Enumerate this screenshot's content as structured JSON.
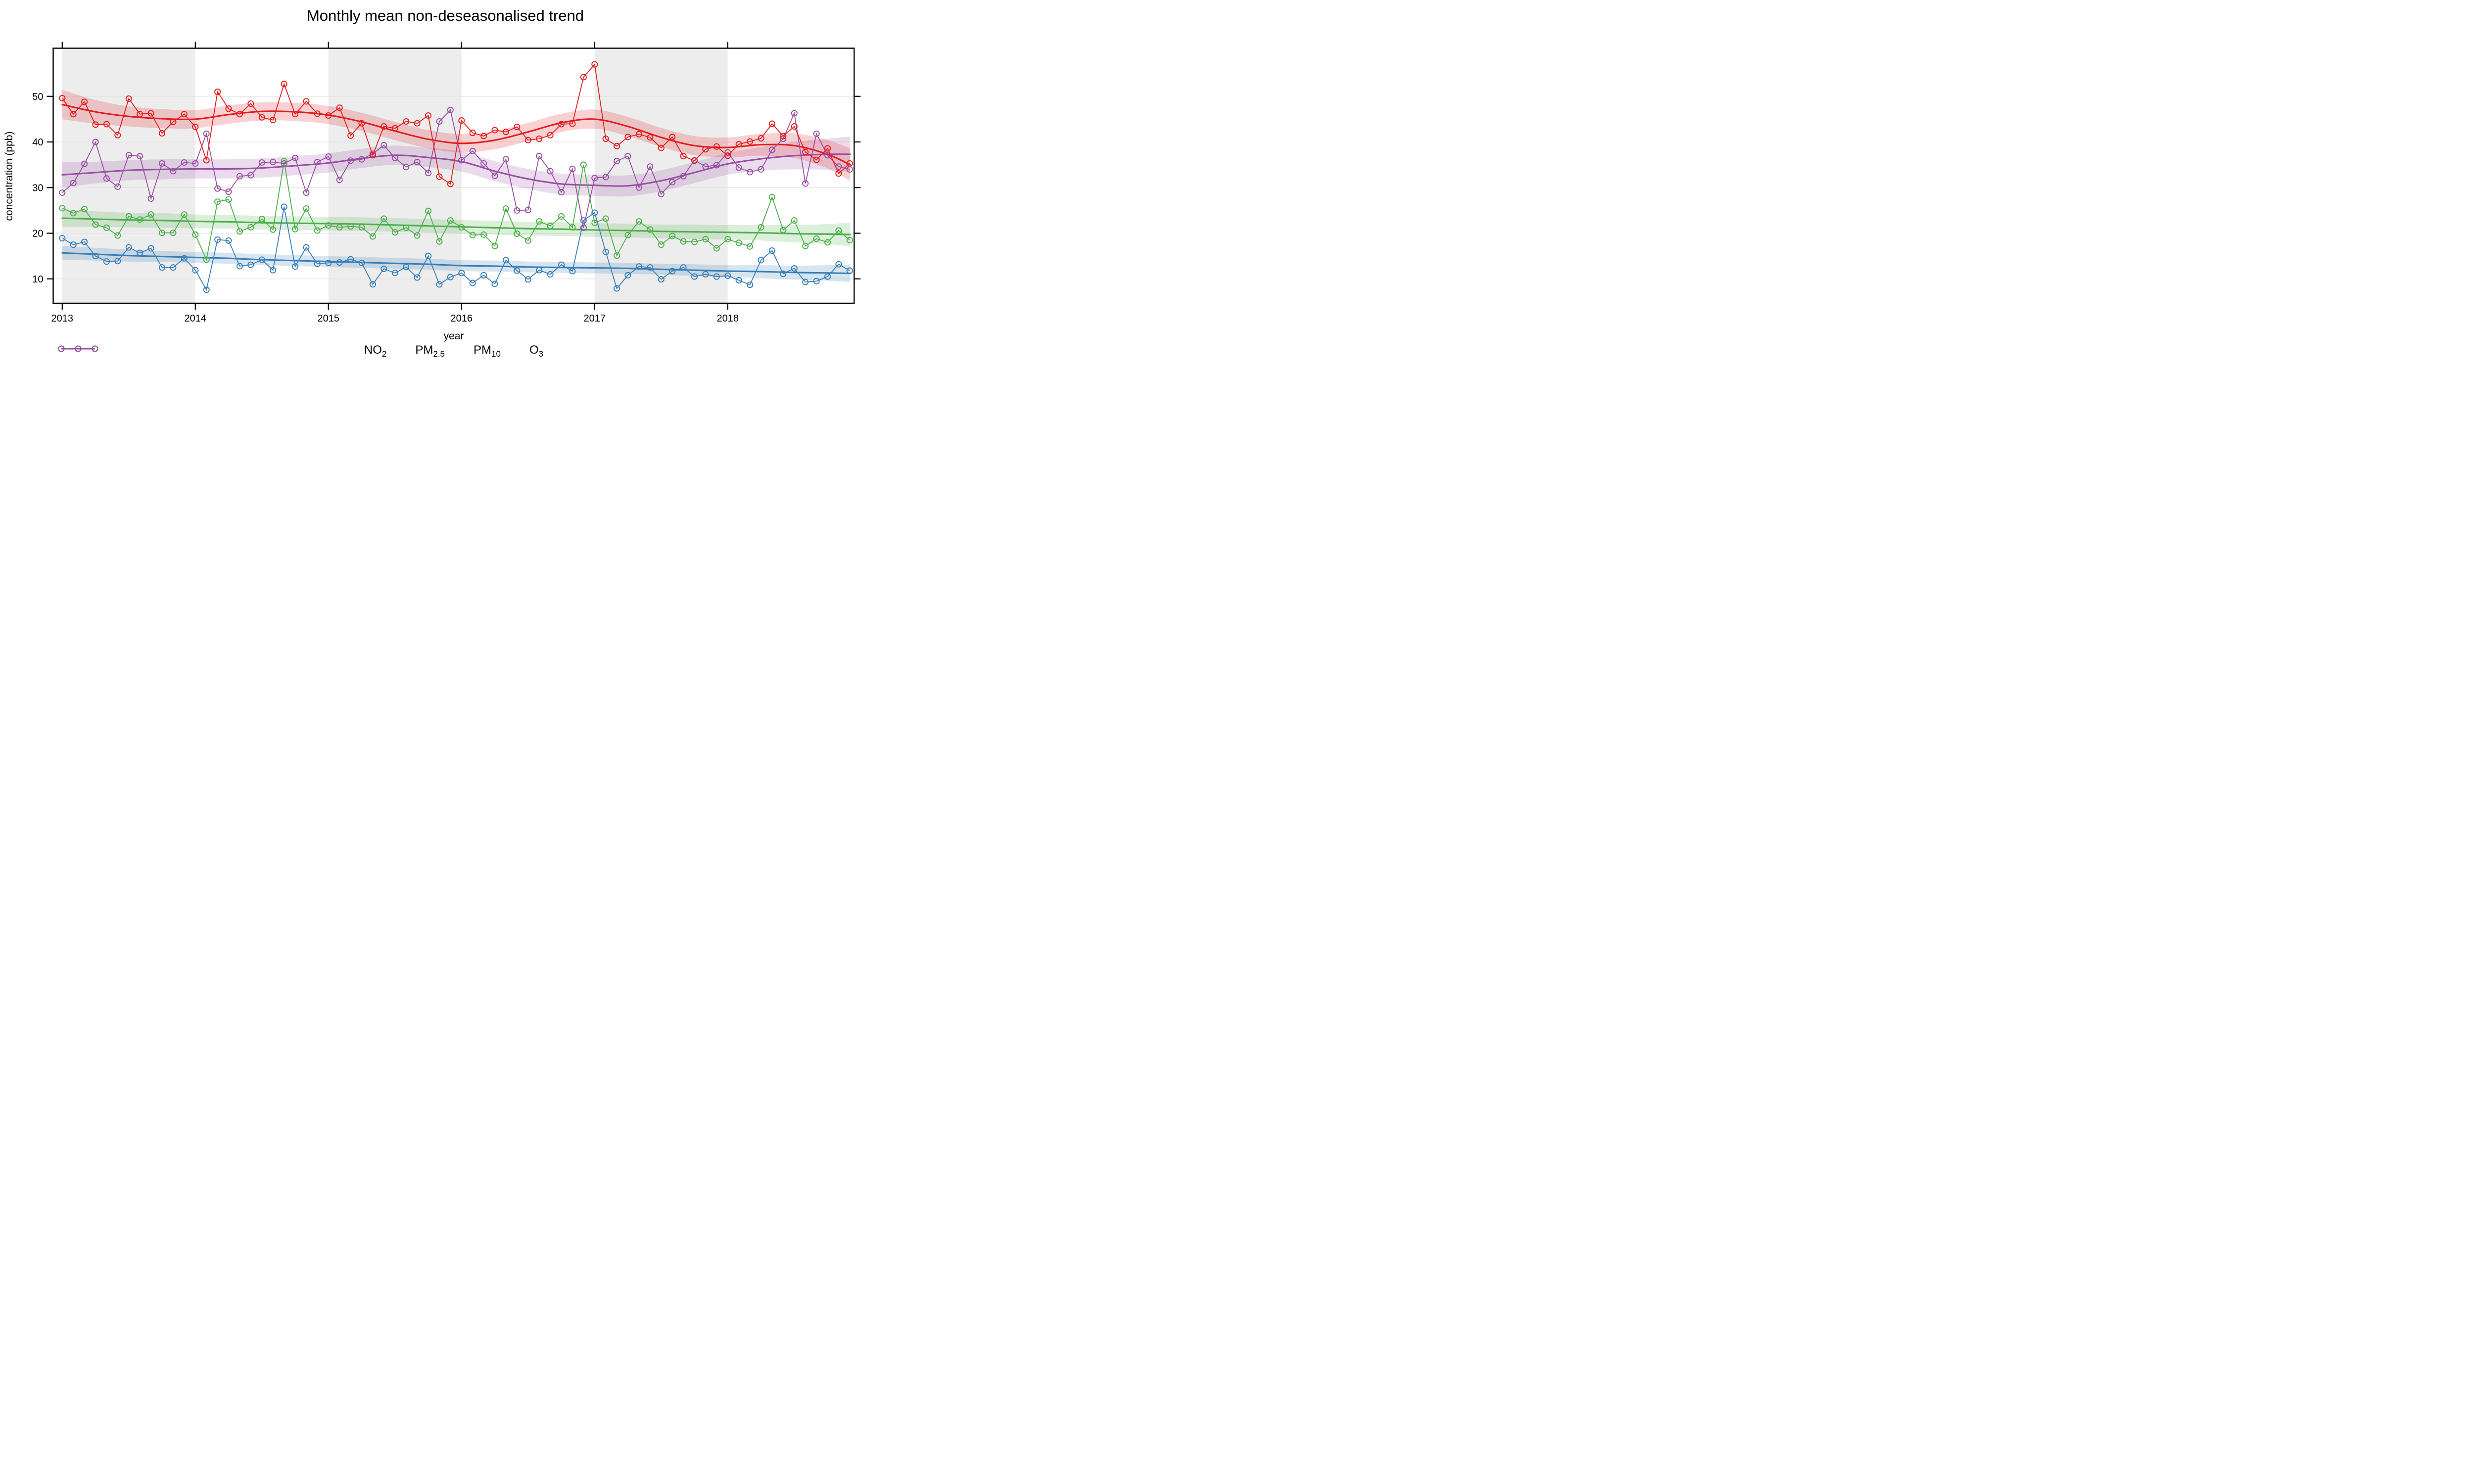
{
  "title": "Monthly mean non-deseasonalised trend",
  "y_axis": {
    "label": "concentration (ppb)",
    "ticks": [
      10,
      20,
      30,
      40,
      50
    ],
    "range": [
      4.67,
      60.54
    ]
  },
  "x_axis": {
    "label": "year",
    "ticks": [
      2013,
      2014,
      2015,
      2016,
      2017,
      2018
    ],
    "range": [
      2012.955,
      2018.95
    ]
  },
  "plot_style": {
    "shaded_years": [
      2013,
      2015,
      2017
    ],
    "band_color": "#ededed",
    "grid_color": "#e2e2e2",
    "axis_color": "#000000",
    "ribbon_opacity": 0.2
  },
  "legend": [
    {
      "series": "no2",
      "label_main": "NO",
      "label_sub": "2"
    },
    {
      "series": "pm25",
      "label_main": "PM",
      "label_sub": "2.5"
    },
    {
      "series": "pm10",
      "label_main": "PM",
      "label_sub": "10"
    },
    {
      "series": "o3",
      "label_main": "O",
      "label_sub": "3"
    }
  ],
  "chart_data": {
    "type": "line",
    "title": "Monthly mean non-deseasonalised trend",
    "xlabel": "year",
    "ylabel": "concentration (ppb)",
    "x_start_year": 2013,
    "x_step_months": 1,
    "n_months": 72,
    "trend_t": [
      2013.0,
      2013.25,
      2013.5,
      2013.75,
      2014.0,
      2014.25,
      2014.5,
      2014.75,
      2015.0,
      2015.25,
      2015.5,
      2015.75,
      2016.0,
      2016.25,
      2016.5,
      2016.75,
      2017.0,
      2017.25,
      2017.5,
      2017.75,
      2018.0,
      2018.25,
      2018.5,
      2018.75,
      2018.92
    ],
    "series": [
      {
        "id": "no2",
        "name": "NO2",
        "color": "#e41a1c",
        "values": [
          49.6,
          46.1,
          48.8,
          43.8,
          43.9,
          41.5,
          49.5,
          46.1,
          46.3,
          41.9,
          44.4,
          46.1,
          43.3,
          36.0,
          51.0,
          47.3,
          46.1,
          48.4,
          45.4,
          44.8,
          52.7,
          46.1,
          48.9,
          46.2,
          45.8,
          47.5,
          41.4,
          44.1,
          37.1,
          43.4,
          43.0,
          44.5,
          44.1,
          45.8,
          32.4,
          30.8,
          44.7,
          42.0,
          41.3,
          42.6,
          42.2,
          43.3,
          40.4,
          40.7,
          41.5,
          43.9,
          44.0,
          54.2,
          57.0,
          40.7,
          39.1,
          41.1,
          41.7,
          41.0,
          38.7,
          41.1,
          36.9,
          35.9,
          38.4,
          39.0,
          37.0,
          39.5,
          40.1,
          40.8,
          44.0,
          41.3,
          43.4,
          37.8,
          36.1,
          38.6,
          33.1,
          35.3
        ],
        "trend": [
          48.2,
          46.6,
          45.6,
          45.1,
          45.0,
          46.0,
          46.7,
          46.6,
          45.9,
          44.4,
          42.4,
          40.6,
          39.7,
          40.4,
          42.2,
          44.2,
          45.0,
          43.4,
          41.0,
          39.2,
          38.8,
          39.4,
          39.2,
          37.3,
          35.0
        ],
        "band": [
          3.2,
          2.6,
          2.2,
          2.1,
          2.0,
          2.0,
          2.0,
          2.0,
          2.0,
          2.0,
          2.0,
          2.0,
          2.0,
          2.0,
          2.0,
          2.0,
          2.1,
          2.1,
          2.1,
          2.1,
          2.2,
          2.4,
          2.7,
          3.1,
          3.6
        ]
      },
      {
        "id": "pm25",
        "name": "PM2.5",
        "color": "#377eb8",
        "values": [
          18.9,
          17.5,
          18.1,
          15.0,
          13.8,
          13.9,
          16.9,
          15.7,
          16.7,
          12.5,
          12.5,
          14.5,
          11.9,
          7.6,
          18.6,
          18.4,
          12.8,
          13.1,
          14.2,
          11.9,
          25.8,
          12.7,
          16.9,
          13.3,
          13.5,
          13.6,
          14.3,
          13.5,
          8.8,
          12.2,
          11.3,
          12.6,
          10.3,
          15.0,
          8.8,
          10.4,
          11.3,
          9.1,
          10.8,
          8.9,
          14.1,
          11.8,
          9.9,
          11.9,
          11.0,
          13.1,
          11.7,
          22.8,
          24.5,
          15.9,
          7.9,
          10.8,
          12.7,
          12.5,
          9.9,
          11.7,
          12.5,
          10.5,
          11.0,
          10.5,
          10.7,
          9.7,
          8.7,
          14.1,
          16.2,
          11.1,
          12.3,
          9.3,
          9.5,
          10.5,
          13.2,
          11.8
        ],
        "trend": [
          15.7,
          15.4,
          15.1,
          14.9,
          14.7,
          14.5,
          14.2,
          14.0,
          13.8,
          13.6,
          13.4,
          13.2,
          12.9,
          12.8,
          12.6,
          12.5,
          12.4,
          12.3,
          12.1,
          11.9,
          11.7,
          11.6,
          11.4,
          11.3,
          11.2
        ],
        "band": [
          1.5,
          1.4,
          1.3,
          1.2,
          1.2,
          1.2,
          1.2,
          1.2,
          1.2,
          1.2,
          1.2,
          1.2,
          1.2,
          1.2,
          1.2,
          1.2,
          1.2,
          1.2,
          1.2,
          1.3,
          1.3,
          1.4,
          1.5,
          1.7,
          1.9
        ]
      },
      {
        "id": "pm10",
        "name": "PM10",
        "color": "#4daf4a",
        "values": [
          25.5,
          24.4,
          25.3,
          21.9,
          21.2,
          19.5,
          23.7,
          23.0,
          24.1,
          20.1,
          20.1,
          24.1,
          19.7,
          14.2,
          26.9,
          27.4,
          20.4,
          21.3,
          23.1,
          20.8,
          35.8,
          20.9,
          25.4,
          20.6,
          21.7,
          21.3,
          21.5,
          21.3,
          19.3,
          23.2,
          20.2,
          21.2,
          19.5,
          24.9,
          18.2,
          22.8,
          21.3,
          19.6,
          19.7,
          17.2,
          25.4,
          19.9,
          18.4,
          22.6,
          21.6,
          23.7,
          21.3,
          35.0,
          22.3,
          23.2,
          15.1,
          19.6,
          22.6,
          20.8,
          17.5,
          19.4,
          18.2,
          18.1,
          18.7,
          16.7,
          18.7,
          17.9,
          17.1,
          21.3,
          27.9,
          20.7,
          22.8,
          17.2,
          18.8,
          18.0,
          20.6,
          18.5
        ],
        "trend": [
          23.3,
          23.1,
          22.9,
          22.8,
          22.6,
          22.5,
          22.3,
          22.2,
          22.1,
          22.0,
          21.8,
          21.6,
          21.4,
          21.2,
          21.0,
          20.9,
          20.7,
          20.6,
          20.4,
          20.3,
          20.2,
          20.1,
          19.9,
          19.8,
          19.7
        ],
        "band": [
          1.9,
          1.7,
          1.6,
          1.6,
          1.5,
          1.5,
          1.5,
          1.5,
          1.5,
          1.5,
          1.5,
          1.5,
          1.5,
          1.5,
          1.5,
          1.5,
          1.5,
          1.5,
          1.5,
          1.6,
          1.6,
          1.7,
          1.9,
          2.2,
          2.6
        ]
      },
      {
        "id": "o3",
        "name": "O3",
        "color": "#984ea3",
        "values": [
          28.9,
          31.0,
          35.2,
          40.0,
          32.0,
          30.2,
          37.1,
          36.9,
          27.6,
          35.3,
          33.6,
          35.5,
          35.3,
          41.8,
          29.8,
          29.1,
          32.5,
          32.7,
          35.5,
          35.6,
          35.3,
          36.5,
          28.9,
          35.6,
          36.8,
          31.7,
          35.9,
          36.2,
          37.4,
          39.3,
          36.5,
          34.5,
          35.6,
          33.2,
          44.5,
          47.0,
          36.0,
          38.0,
          35.3,
          32.6,
          36.2,
          25.0,
          25.1,
          36.9,
          33.6,
          29.0,
          34.1,
          21.2,
          32.1,
          32.3,
          35.8,
          36.9,
          30.0,
          34.6,
          28.6,
          31.2,
          32.5,
          36.0,
          34.6,
          34.9,
          37.7,
          34.4,
          33.4,
          34.0,
          38.3,
          40.7,
          46.3,
          30.9,
          41.8,
          37.1,
          34.6,
          34.0
        ],
        "trend": [
          32.8,
          33.3,
          33.8,
          34.0,
          34.1,
          34.1,
          34.3,
          34.8,
          35.4,
          36.4,
          37.1,
          36.6,
          35.7,
          33.6,
          31.9,
          30.8,
          30.5,
          30.4,
          31.5,
          33.3,
          35.2,
          36.3,
          37.0,
          37.3,
          37.3
        ],
        "band": [
          2.8,
          2.4,
          2.2,
          2.2,
          2.1,
          2.1,
          2.1,
          2.1,
          2.1,
          2.1,
          2.1,
          2.1,
          2.2,
          2.2,
          2.2,
          2.3,
          2.3,
          2.3,
          2.3,
          2.3,
          2.4,
          2.6,
          3.0,
          3.4,
          3.9
        ]
      }
    ]
  }
}
